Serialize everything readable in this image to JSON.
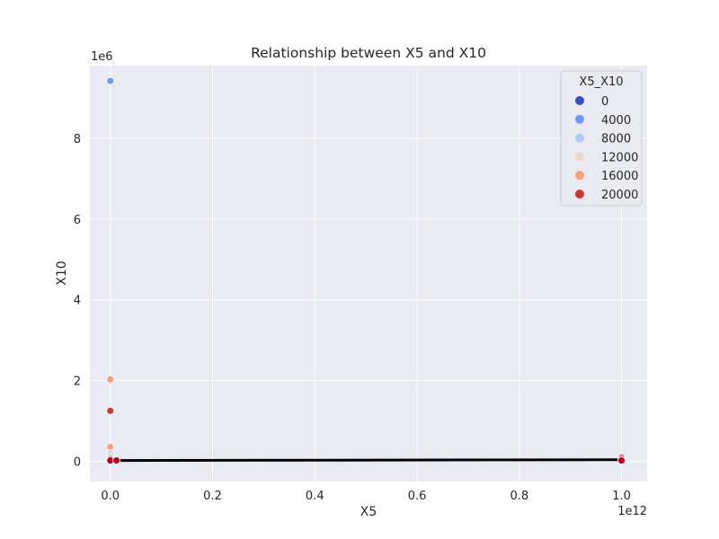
{
  "chart_data": {
    "type": "scatter",
    "title": "Relationship between X5 and X10",
    "xlabel": "X5",
    "ylabel": "X10",
    "x_offset_label": "1e12",
    "y_offset_label": "1e6",
    "x_scale": 1000000000000.0,
    "y_scale": 1000000.0,
    "xlim": [
      -0.04,
      1.05
    ],
    "ylim": [
      -0.5,
      9.8
    ],
    "xticks": [
      0.0,
      0.2,
      0.4,
      0.6,
      0.8,
      1.0
    ],
    "xtick_labels": [
      "0.0",
      "0.2",
      "0.4",
      "0.6",
      "0.8",
      "1.0"
    ],
    "yticks": [
      0,
      2,
      4,
      6,
      8
    ],
    "ytick_labels": [
      "0",
      "2",
      "4",
      "6",
      "8"
    ],
    "grid": true,
    "legend": {
      "title": "X5_X10",
      "position": "top-right",
      "entries": [
        {
          "label": "0",
          "color": "#3b4cc0"
        },
        {
          "label": "4000",
          "color": "#7396f5"
        },
        {
          "label": "8000",
          "color": "#b1cbfc"
        },
        {
          "label": "12000",
          "color": "#e8d6cc"
        },
        {
          "label": "16000",
          "color": "#f59d7e"
        },
        {
          "label": "20000",
          "color": "#c83a36"
        }
      ]
    },
    "points": [
      {
        "x": 0.0,
        "y": 9.42,
        "color": "#7396f5"
      },
      {
        "x": 0.0,
        "y": 2.03,
        "color": "#f59d7e"
      },
      {
        "x": 0.0,
        "y": 1.25,
        "color": "#c83a36"
      },
      {
        "x": 0.0,
        "y": 0.36,
        "color": "#f59d7e"
      },
      {
        "x": 0.0,
        "y": 0.2,
        "color": "#e8d6cc"
      },
      {
        "x": 0.0,
        "y": 0.1,
        "color": "#b1cbfc"
      },
      {
        "x": 0.0,
        "y": 0.05,
        "color": "#c83a36"
      },
      {
        "x": 0.0,
        "y": 0.02,
        "color": "#b40426"
      },
      {
        "x": 0.012,
        "y": 0.02,
        "color": "#b40426"
      },
      {
        "x": 1.0,
        "y": 0.09,
        "color": "#c83a36"
      },
      {
        "x": 1.0,
        "y": 0.05,
        "color": "#b40426"
      },
      {
        "x": 1.0,
        "y": 0.02,
        "color": "#b40426"
      }
    ],
    "fit_line": {
      "x": [
        0.0,
        1.0
      ],
      "y": [
        0.02,
        0.04
      ],
      "color": "#000000"
    }
  }
}
